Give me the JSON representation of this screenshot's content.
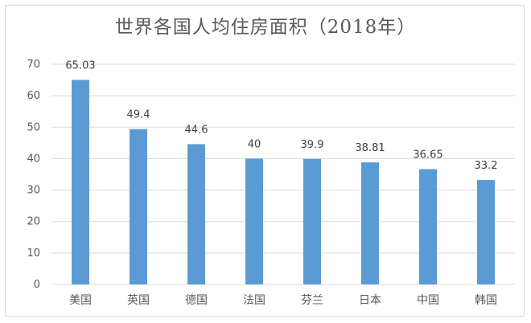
{
  "chart_data": {
    "type": "bar",
    "title": "世界各国人均住房面积（2018年）",
    "categories": [
      "美国",
      "英国",
      "德国",
      "法国",
      "芬兰",
      "日本",
      "中国",
      "韩国"
    ],
    "values": [
      65.03,
      49.4,
      44.6,
      40,
      39.9,
      38.81,
      36.65,
      33.2
    ],
    "data_labels": [
      "65.03",
      "49.4",
      "44.6",
      "40",
      "39.9",
      "38.81",
      "36.65",
      "33.2"
    ],
    "yticks": [
      "0",
      "10",
      "20",
      "30",
      "40",
      "50",
      "60",
      "70"
    ],
    "ylim": [
      0,
      70
    ],
    "xlabel": "",
    "ylabel": "",
    "grid": true,
    "legend": "none",
    "bar_color": "#5b9bd5",
    "grid_color": "#d9d9d9"
  }
}
